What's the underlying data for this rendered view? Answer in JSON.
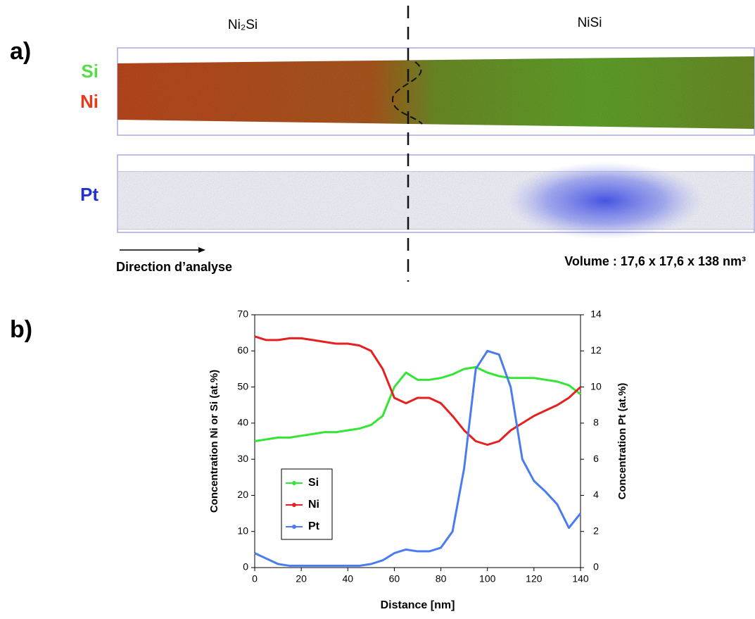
{
  "panel_a": {
    "label": "a)",
    "left_phase": "Ni₂Si",
    "right_phase": "NiSi",
    "row1_labels": [
      "Si",
      "Ni"
    ],
    "row2_label": "Pt",
    "direction": "Direction d’analyse",
    "volume": "Volume : 17,6 x 17,6 x 138 nm³"
  },
  "panel_b_label": "b)",
  "chart_data": {
    "type": "line",
    "xlabel": "Distance [nm]",
    "ylabel": "Concentration Ni or Si (at.%)",
    "y2label": "Concentration Pt (at.%)",
    "x": [
      0,
      5,
      10,
      15,
      20,
      25,
      30,
      35,
      40,
      45,
      50,
      55,
      60,
      65,
      70,
      75,
      80,
      85,
      90,
      95,
      100,
      105,
      110,
      115,
      120,
      125,
      130,
      135,
      140
    ],
    "series": [
      {
        "name": "Si",
        "color": "#33e633",
        "values": [
          35,
          35.5,
          36,
          36,
          36.5,
          37,
          37.5,
          37.5,
          38,
          38.5,
          39.5,
          42,
          50,
          54,
          52,
          52,
          52.5,
          53.5,
          55,
          55.5,
          54,
          53,
          52.5,
          52.5,
          52.5,
          52,
          51.5,
          50.5,
          48
        ]
      },
      {
        "name": "Ni",
        "color": "#e62020",
        "values": [
          64,
          63,
          63,
          63.5,
          63.5,
          63,
          62.5,
          62,
          62,
          61.5,
          60,
          55,
          47,
          45.5,
          47,
          47,
          45.5,
          42,
          38,
          35,
          34,
          35,
          38,
          40,
          42,
          43.5,
          45,
          47,
          50
        ]
      },
      {
        "name": "Pt",
        "color": "#4a7cf0",
        "axis": "y2",
        "values": [
          0.8,
          0.5,
          0.2,
          0.1,
          0.1,
          0.1,
          0.1,
          0.1,
          0.1,
          0.1,
          0.2,
          0.4,
          0.8,
          1,
          0.9,
          0.9,
          1.1,
          2,
          5.5,
          11,
          12,
          11.8,
          10,
          6,
          4.8,
          4.2,
          3.5,
          2.2,
          3
        ]
      }
    ],
    "xlim": [
      0,
      140
    ],
    "xticks": [
      0,
      20,
      40,
      60,
      80,
      100,
      120,
      140
    ],
    "ylim": [
      0,
      70
    ],
    "yticks": [
      0,
      10,
      20,
      30,
      40,
      50,
      60,
      70
    ],
    "y2lim": [
      0,
      14
    ],
    "y2ticks": [
      0,
      2,
      4,
      6,
      8,
      10,
      12,
      14
    ],
    "legend": "lower left"
  }
}
